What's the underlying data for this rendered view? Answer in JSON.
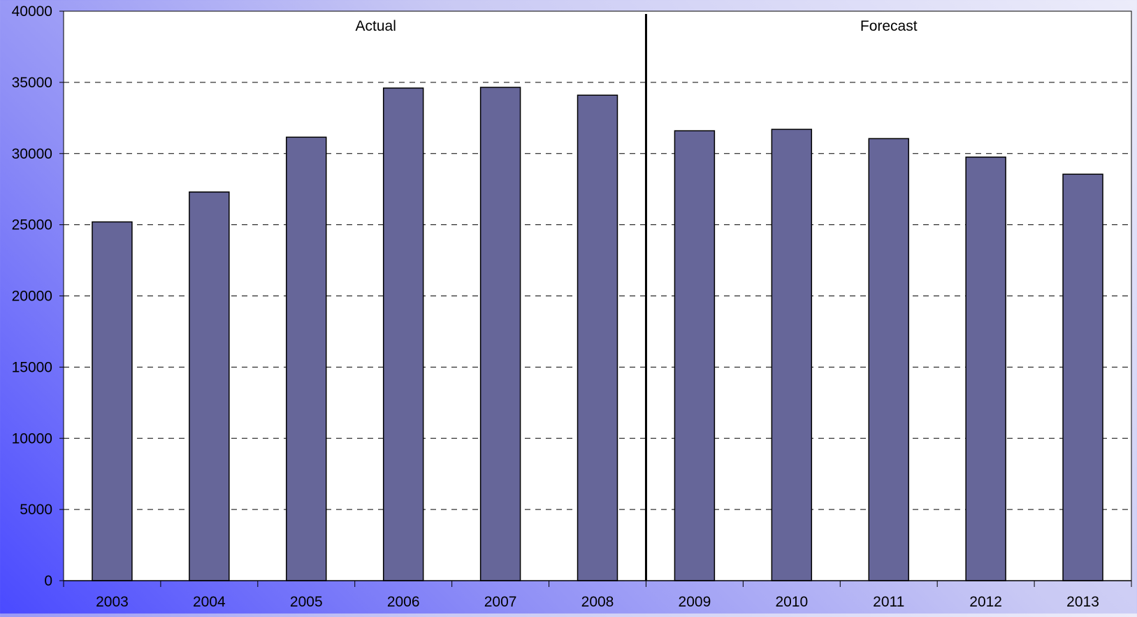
{
  "chart_data": {
    "type": "bar",
    "categories": [
      "2003",
      "2004",
      "2005",
      "2006",
      "2007",
      "2008",
      "2009",
      "2010",
      "2011",
      "2012",
      "2013"
    ],
    "values": [
      25200,
      27300,
      31150,
      34600,
      34650,
      34100,
      31600,
      31700,
      31050,
      29750,
      28550
    ],
    "ylim": [
      0,
      40000
    ],
    "yticks": [
      "0",
      "5000",
      "10000",
      "15000",
      "20000",
      "25000",
      "30000",
      "35000",
      "40000"
    ],
    "grid": true,
    "legend": "none",
    "annotations": {
      "actual_label": "Actual",
      "forecast_label": "Forecast"
    },
    "divider_after_category": "2008",
    "colors": {
      "bar_fill": "#666699",
      "bar_stroke": "#000000",
      "plot_bg": "#ffffff",
      "grid": "#000000"
    }
  }
}
